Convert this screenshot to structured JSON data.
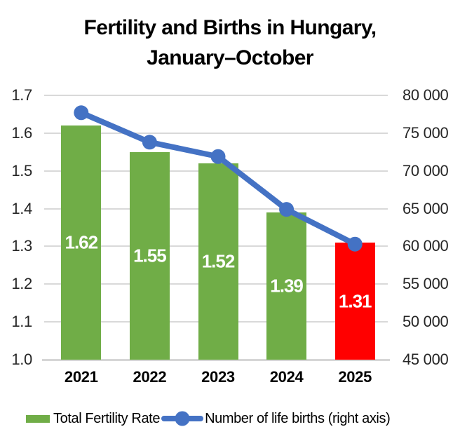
{
  "title": {
    "line1": "Fertility and Births in Hungary,",
    "line2": "January–October"
  },
  "chart_data": {
    "type": "bar+line combo",
    "title": "Fertility and Births in Hungary, January–October",
    "categories": [
      "2021",
      "2022",
      "2023",
      "2024",
      "2025"
    ],
    "bar_series": {
      "name": "Total Fertility Rate",
      "axis": "left",
      "values": [
        1.62,
        1.55,
        1.52,
        1.39,
        1.31
      ],
      "labels": [
        "1.62",
        "1.55",
        "1.52",
        "1.39",
        "1.31"
      ],
      "colors": [
        "#70AD47",
        "#70AD47",
        "#70AD47",
        "#70AD47",
        "#FF0000"
      ],
      "label_color": "#FFFFFF"
    },
    "line_series": {
      "name": "Number of life births (right axis)",
      "axis": "right",
      "values": [
        77700,
        73800,
        71900,
        64900,
        60300
      ],
      "color": "#4472C4"
    },
    "left_axis": {
      "min": 1.0,
      "max": 1.7,
      "ticks": [
        {
          "label": "1.7",
          "value": 1.7
        },
        {
          "label": "1.6",
          "value": 1.6
        },
        {
          "label": "1.5",
          "value": 1.5
        },
        {
          "label": "1.4",
          "value": 1.4
        },
        {
          "label": "1.3",
          "value": 1.3
        },
        {
          "label": "1.2",
          "value": 1.2
        },
        {
          "label": "1.1",
          "value": 1.1
        },
        {
          "label": "1.0",
          "value": 1.0
        }
      ]
    },
    "right_axis": {
      "min": 45000,
      "max": 80000,
      "ticks": [
        {
          "label": "80 000",
          "value": 80000
        },
        {
          "label": "75 000",
          "value": 75000
        },
        {
          "label": "70 000",
          "value": 70000
        },
        {
          "label": "65 000",
          "value": 65000
        },
        {
          "label": "60 000",
          "value": 60000
        },
        {
          "label": "55 000",
          "value": 55000
        },
        {
          "label": "50 000",
          "value": 50000
        },
        {
          "label": "45 000",
          "value": 45000
        }
      ]
    },
    "grid": {
      "on": true,
      "color": "#D9D9D9"
    },
    "legend_position": "bottom"
  },
  "legend": {
    "items": [
      {
        "label": "Total Fertility Rate",
        "marker": "bar-swatch",
        "color": "#70AD47"
      },
      {
        "label": "Number of life births (right axis)",
        "marker": "line-with-dot",
        "color": "#4472C4"
      }
    ]
  }
}
